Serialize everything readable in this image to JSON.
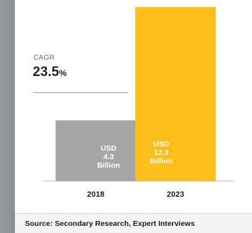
{
  "chart_data": {
    "type": "bar",
    "categories": [
      "2018",
      "2023"
    ],
    "values": [
      4.3,
      12.3
    ],
    "value_labels": [
      [
        "USD",
        "4.3",
        "Billion"
      ],
      [
        "USD",
        "12.3",
        "Billion"
      ]
    ],
    "colors": [
      "#a6a6a6",
      "#ffbf1a"
    ],
    "title": "",
    "xlabel": "",
    "ylabel": "",
    "ylim": [
      0,
      12.3
    ]
  },
  "annotation": {
    "cagr_label": "CAGR",
    "cagr_value": "23.5",
    "cagr_unit": "%"
  },
  "footer": {
    "source": "Source: Secondary Research, Expert Interviews"
  }
}
